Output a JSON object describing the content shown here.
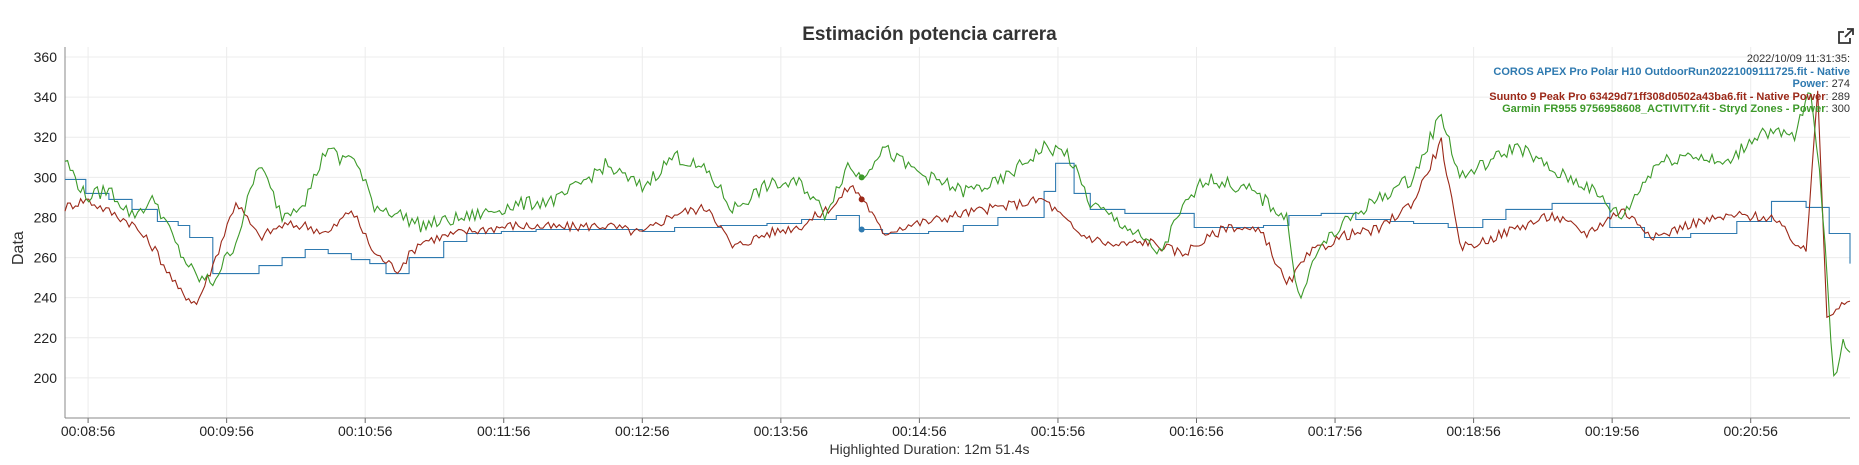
{
  "chart_data": {
    "type": "line",
    "title": "Estimación potencia carrera",
    "ylabel": "Data",
    "xlabel": "",
    "ylim": [
      180,
      365
    ],
    "y_ticks": [
      200,
      220,
      240,
      260,
      280,
      300,
      320,
      340,
      360
    ],
    "x_ticks": [
      "00:08:56",
      "00:09:56",
      "00:10:56",
      "00:11:56",
      "00:12:56",
      "00:13:56",
      "00:14:56",
      "00:15:56",
      "00:16:56",
      "00:17:56",
      "00:18:56",
      "00:19:56",
      "00:20:56"
    ],
    "x_range_seconds": [
      526,
      1299
    ],
    "x_tick_seconds": [
      536,
      596,
      656,
      716,
      776,
      836,
      896,
      956,
      1016,
      1076,
      1136,
      1196,
      1256
    ],
    "grid": true,
    "legend": "tooltip top-right",
    "footer": "Highlighted Duration: 12m 51.4s",
    "hover": {
      "timestamp": "2022/10/09 11:31:35:",
      "time_seconds": 871
    },
    "series": [
      {
        "name": "COROS APEX Pro Polar H10 OutdoorRun20221009111725.fit - Native Power",
        "label_line1": "COROS APEX Pro Polar H10 OutdoorRun20221009111725.fit - Native",
        "label_line2": "Power",
        "hover_value": "274",
        "color": "#2f7ab0",
        "x": [
          526,
          535,
          545,
          555,
          566,
          575,
          580,
          590,
          600,
          610,
          620,
          630,
          640,
          650,
          658,
          665,
          675,
          690,
          700,
          715,
          730,
          760,
          776,
          790,
          810,
          830,
          845,
          860,
          870,
          880,
          900,
          915,
          930,
          950,
          955,
          963,
          970,
          985,
          1000,
          1015,
          1030,
          1045,
          1056,
          1070,
          1085,
          1100,
          1110,
          1125,
          1140,
          1150,
          1170,
          1195,
          1210,
          1230,
          1250,
          1265,
          1280,
          1285,
          1290,
          1299
        ],
        "y": [
          299,
          292,
          289,
          284,
          278,
          276,
          270,
          252,
          252,
          256,
          260,
          264,
          262,
          259,
          257,
          252,
          260,
          268,
          272,
          273,
          274,
          274,
          273,
          275,
          276,
          277,
          279,
          281,
          274,
          272,
          273,
          276,
          280,
          293,
          307,
          292,
          284,
          282,
          282,
          275,
          275,
          276,
          281,
          282,
          279,
          278,
          277,
          275,
          279,
          284,
          287,
          275,
          270,
          272,
          278,
          288,
          285,
          285,
          272,
          257
        ]
      },
      {
        "name": "Suunto 9 Peak Pro 63429d71ff308d0502a43ba6.fit - Native Power",
        "label_line1": "Suunto 9 Peak Pro 63429d71ff308d0502a43ba6.fit - Native Power",
        "hover_value": "289",
        "color": "#9b2818",
        "x": [
          526,
          535,
          545,
          555,
          565,
          575,
          583,
          590,
          600,
          610,
          620,
          630,
          640,
          650,
          660,
          670,
          680,
          700,
          720,
          740,
          760,
          776,
          790,
          805,
          815,
          830,
          845,
          860,
          866,
          872,
          880,
          890,
          900,
          915,
          930,
          950,
          965,
          980,
          995,
          1010,
          1030,
          1045,
          1055,
          1065,
          1080,
          1095,
          1110,
          1122,
          1130,
          1140,
          1155,
          1170,
          1185,
          1200,
          1215,
          1230,
          1250,
          1265,
          1280,
          1285,
          1289,
          1293,
          1299
        ],
        "y": [
          285,
          289,
          283,
          277,
          264,
          244,
          237,
          256,
          288,
          270,
          276,
          276,
          272,
          284,
          262,
          254,
          268,
          273,
          276,
          275,
          276,
          272,
          282,
          285,
          265,
          272,
          276,
          287,
          296,
          289,
          272,
          276,
          278,
          282,
          285,
          289,
          272,
          266,
          268,
          262,
          276,
          272,
          246,
          262,
          271,
          274,
          288,
          318,
          265,
          268,
          275,
          281,
          272,
          284,
          270,
          277,
          281,
          280,
          262,
          345,
          231,
          235,
          237
        ]
      },
      {
        "name": "Garmin FR955 9756958608_ACTIVITY.fit - Stryd Zones - Power",
        "label_line1": "Garmin FR955 9756958608_ACTIVITY.fit - Stryd Zones - Power",
        "hover_value": "300",
        "color": "#3d9a2a",
        "x": [
          526,
          535,
          545,
          555,
          565,
          575,
          583,
          590,
          600,
          610,
          620,
          630,
          640,
          645,
          650,
          660,
          670,
          680,
          700,
          720,
          740,
          760,
          776,
          790,
          805,
          815,
          830,
          845,
          855,
          865,
          871,
          880,
          890,
          900,
          915,
          930,
          950,
          960,
          970,
          985,
          1000,
          1010,
          1020,
          1040,
          1055,
          1060,
          1070,
          1085,
          1100,
          1110,
          1122,
          1130,
          1140,
          1155,
          1170,
          1185,
          1200,
          1215,
          1230,
          1245,
          1260,
          1275,
          1282,
          1287,
          1292,
          1296,
          1299
        ],
        "y": [
          309,
          290,
          294,
          281,
          289,
          264,
          250,
          248,
          268,
          307,
          281,
          289,
          316,
          308,
          312,
          286,
          282,
          276,
          280,
          286,
          289,
          306,
          295,
          311,
          302,
          284,
          296,
          297,
          282,
          306,
          300,
          315,
          306,
          300,
          293,
          297,
          315,
          312,
          287,
          276,
          262,
          284,
          300,
          293,
          280,
          240,
          266,
          282,
          293,
          300,
          332,
          300,
          306,
          316,
          303,
          296,
          280,
          307,
          312,
          306,
          323,
          320,
          345,
          286,
          198,
          220,
          212
        ]
      }
    ]
  },
  "ui": {
    "export_icon": "external-link-icon"
  }
}
